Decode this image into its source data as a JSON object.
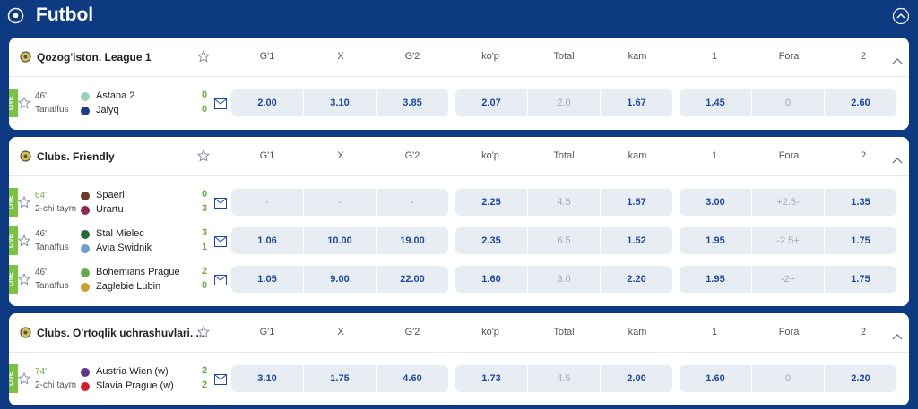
{
  "header": {
    "title": "Futbol"
  },
  "columns": [
    "G'1",
    "X",
    "G'2",
    "ko'p",
    "Total",
    "kam",
    "1",
    "Fora",
    "2"
  ],
  "leagues": [
    {
      "name": "Qozog'iston.  League 1",
      "matches": [
        {
          "badge": "LIVE",
          "minute": "46'",
          "status": "Tanaffus",
          "team1": "Astana 2",
          "team2": "Jaiyq",
          "score1": "0",
          "score2": "0",
          "odds": [
            "2.00",
            "3.10",
            "3.85",
            "2.07",
            "2.0",
            "1.67",
            "1.45",
            "0",
            "2.60"
          ]
        }
      ]
    },
    {
      "name": "Clubs.  Friendly",
      "matches": [
        {
          "badge": "LIVE",
          "minute": "64'",
          "status": "2-chi taym",
          "team1": "Spaeri",
          "team2": "Urartu",
          "score1": "0",
          "score2": "3",
          "odds": [
            "-",
            "-",
            "-",
            "2.25",
            "4.5",
            "1.57",
            "3.00",
            "+2.5-",
            "1.35"
          ]
        },
        {
          "badge": "LIVE",
          "minute": "46'",
          "status": "Tanaffus",
          "team1": "Stal Mielec",
          "team2": "Avia Swidnik",
          "score1": "3",
          "score2": "1",
          "odds": [
            "1.06",
            "10.00",
            "19.00",
            "2.35",
            "6.5",
            "1.52",
            "1.95",
            "-2.5+",
            "1.75"
          ]
        },
        {
          "badge": "LIVE",
          "minute": "46'",
          "status": "Tanaffus",
          "team1": "Bohemians Prague",
          "team2": "Zaglebie Lubin",
          "score1": "2",
          "score2": "0",
          "odds": [
            "1.05",
            "9.00",
            "22.00",
            "1.60",
            "3.0",
            "2.20",
            "1.95",
            "-2+",
            "1.75"
          ]
        }
      ]
    },
    {
      "name": "Clubs.  O'rtoqlik uchrashuvlari. ...",
      "matches": [
        {
          "badge": "LIVE",
          "minute": "74'",
          "status": "2-chi taym",
          "team1": "Austria Wien (w)",
          "team2": "Slavia Prague (w)",
          "score1": "2",
          "score2": "2",
          "odds": [
            "3.10",
            "1.75",
            "4.60",
            "1.73",
            "4.5",
            "2.00",
            "1.60",
            "0",
            "2.20"
          ]
        }
      ]
    }
  ]
}
